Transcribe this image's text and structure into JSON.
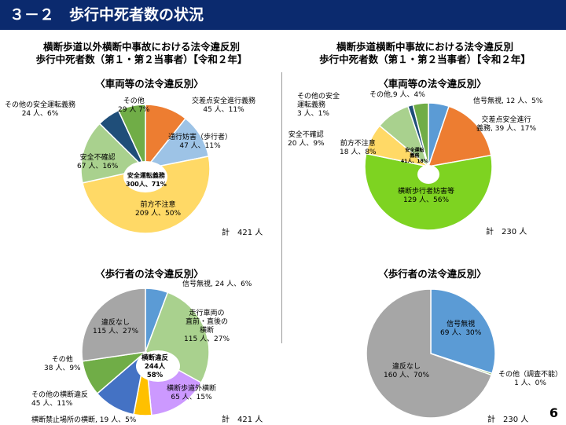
{
  "header": {
    "title": "３－２　歩行中死者数の状況"
  },
  "left_title": {
    "line1": "横断歩道以外横断中事故における法令違反別",
    "line2": "歩行中死者数（第１・第２当事者）【令和２年】"
  },
  "right_title": {
    "line1": "横断歩道横断中事故における法令違反別",
    "line2": "歩行中死者数（第１・第２当事者）【令和２年】"
  },
  "page_number": "6",
  "chart_data": [
    {
      "id": "tl",
      "type": "pie",
      "subtitle": "〈車両等の法令違反別〉",
      "total": "計　421 人",
      "center_label": [
        "安全運転義務",
        "300人、71%"
      ],
      "slices": [
        {
          "name": "交差点安全進行義務",
          "value": 45,
          "label": "45 人、11%",
          "color": "#ed7d31"
        },
        {
          "name": "通行妨害（歩行者）",
          "value": 47,
          "label": "47 人、11%",
          "color": "#9dc3e6"
        },
        {
          "name": "前方不注意",
          "value": 209,
          "label": "209 人、50%",
          "color": "#ffd966"
        },
        {
          "name": "安全不確認",
          "value": 67,
          "label": "67 人、16%",
          "color": "#a9d18e"
        },
        {
          "name": "その他の安全運転義務",
          "value": 24,
          "label": "24 人、6%",
          "color": "#1f4e79"
        },
        {
          "name": "その他",
          "value": 29,
          "label": "29 人 7%",
          "color": "#70ad47"
        }
      ]
    },
    {
      "id": "tr",
      "type": "pie",
      "subtitle": "〈車両等の法令違反別〉",
      "total": "計　230 人",
      "center_label": [
        "安全運転",
        "義務",
        "41人、18%"
      ],
      "slices": [
        {
          "name": "信号無視",
          "value": 12,
          "label": "12 人、5%",
          "color": "#5b9bd5"
        },
        {
          "name": "交差点安全進行義務",
          "value": 39,
          "label": "39 人、17%",
          "color": "#ed7d31"
        },
        {
          "name": "横断歩行者妨害等",
          "value": 129,
          "label": "129 人、56%",
          "color": "#7ed321"
        },
        {
          "name": "前方不注意",
          "value": 18,
          "label": "18 人、8%",
          "color": "#ffd966"
        },
        {
          "name": "安全不確認",
          "value": 20,
          "label": "20 人、9%",
          "color": "#a9d18e"
        },
        {
          "name": "その他の安全運転義務",
          "value": 3,
          "label": "3 人、1%",
          "color": "#1f4e79"
        },
        {
          "name": "その他",
          "value": 9,
          "label": "9 人、4%",
          "color": "#70ad47"
        }
      ]
    },
    {
      "id": "bl",
      "type": "pie",
      "subtitle": "〈歩行者の法令違反別〉",
      "total": "計　421 人",
      "center_label": [
        "横断違反",
        "244人",
        "58%"
      ],
      "slices": [
        {
          "name": "信号無視",
          "value": 24,
          "label": "24 人、6%",
          "color": "#5b9bd5"
        },
        {
          "name": "走行車両の直前・直後の横断",
          "value": 115,
          "label": "115 人、27%",
          "color": "#a9d18e"
        },
        {
          "name": "横断歩道外横断",
          "value": 65,
          "label": "65 人、15%",
          "color": "#cc99ff"
        },
        {
          "name": "横断禁止場所の横断",
          "value": 19,
          "label": "19 人、5%",
          "color": "#ffc000"
        },
        {
          "name": "その他の横断違反",
          "value": 45,
          "label": "45 人、11%",
          "color": "#4472c4"
        },
        {
          "name": "その他",
          "value": 38,
          "label": "38 人、9%",
          "color": "#70ad47"
        },
        {
          "name": "違反なし",
          "value": 115,
          "label": "115 人、27%",
          "color": "#a6a6a6"
        }
      ]
    },
    {
      "id": "br",
      "type": "pie",
      "subtitle": "〈歩行者の法令違反別〉",
      "total": "計　230 人",
      "slices": [
        {
          "name": "信号無視",
          "value": 69,
          "label": "69 人、30%",
          "color": "#5b9bd5"
        },
        {
          "name": "その他（調査不能）",
          "value": 1,
          "label": "1 人、0%",
          "color": "#70ad47"
        },
        {
          "name": "違反なし",
          "value": 160,
          "label": "160 人、70%",
          "color": "#a6a6a6"
        }
      ]
    }
  ]
}
